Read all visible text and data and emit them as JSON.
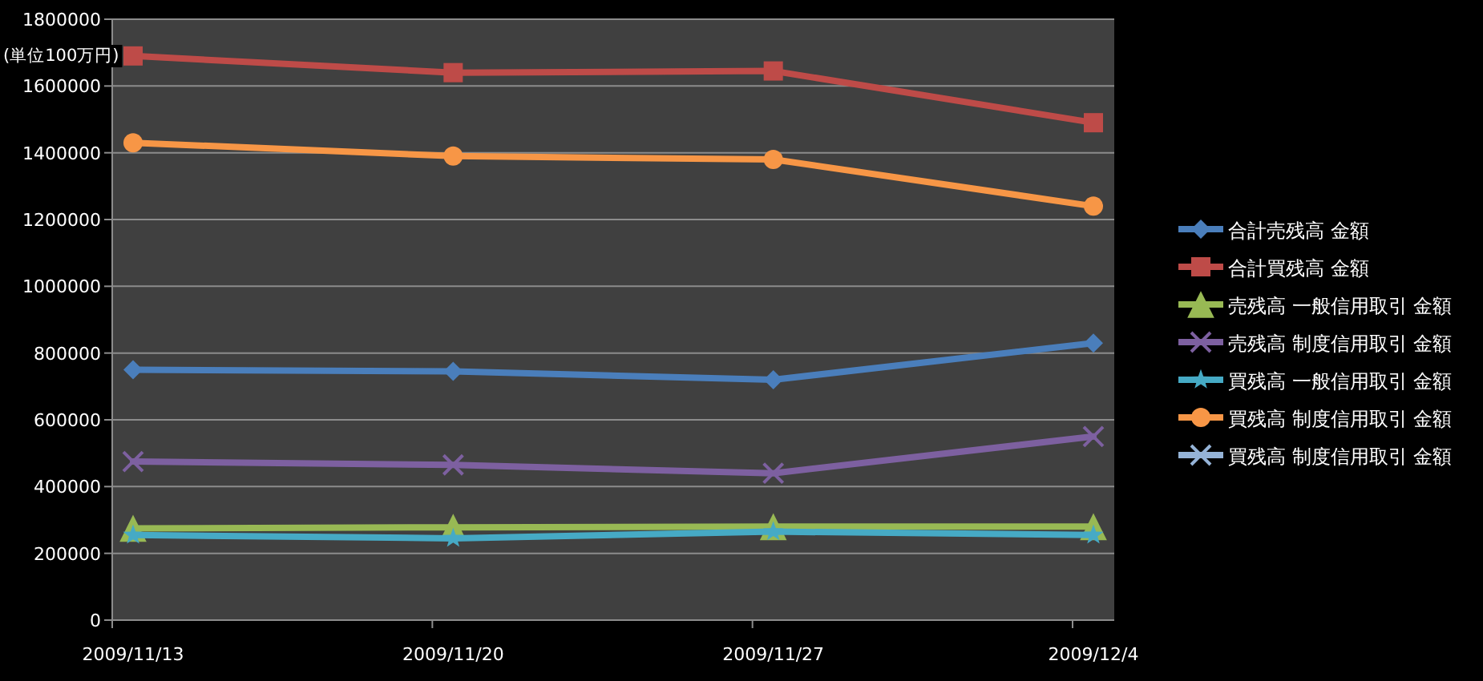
{
  "chart_data": {
    "type": "line",
    "categories": [
      "2009/11/13",
      "2009/11/20",
      "2009/11/27",
      "2009/12/4"
    ],
    "ylim": [
      0,
      1800000
    ],
    "yticks": [
      0,
      200000,
      400000,
      600000,
      800000,
      1000000,
      1200000,
      1400000,
      1600000,
      1800000
    ],
    "grid": "y",
    "legend": "right",
    "annotations": [
      "(単位100万円)"
    ],
    "series": [
      {
        "name": "合計売残高 金額",
        "color": "#4a7ebb",
        "marker": "diamond",
        "values": [
          750000,
          745000,
          720000,
          830000
        ]
      },
      {
        "name": "合計買残高 金額",
        "color": "#be4b48",
        "marker": "square",
        "values": [
          1690000,
          1640000,
          1645000,
          1490000
        ]
      },
      {
        "name": "売残高 一般信用取引 金額",
        "color": "#98b954",
        "marker": "triangle",
        "values": [
          275000,
          278000,
          280000,
          280000
        ]
      },
      {
        "name": "売残高 制度信用取引 金額",
        "color": "#7d60a0",
        "marker": "cross",
        "values": [
          475000,
          465000,
          440000,
          550000
        ]
      },
      {
        "name": "買残高 一般信用取引 金額",
        "color": "#46aac5",
        "marker": "star",
        "values": [
          255000,
          245000,
          265000,
          255000
        ]
      },
      {
        "name": "買残高 制度信用取引 金額",
        "color": "#f79646",
        "marker": "circle",
        "values": [
          1430000,
          1390000,
          1380000,
          1240000
        ]
      },
      {
        "name": "買残高 制度信用取引 金額",
        "color": "#95b3d7",
        "marker": "cross",
        "values": [
          null,
          null,
          null,
          null
        ]
      }
    ]
  }
}
